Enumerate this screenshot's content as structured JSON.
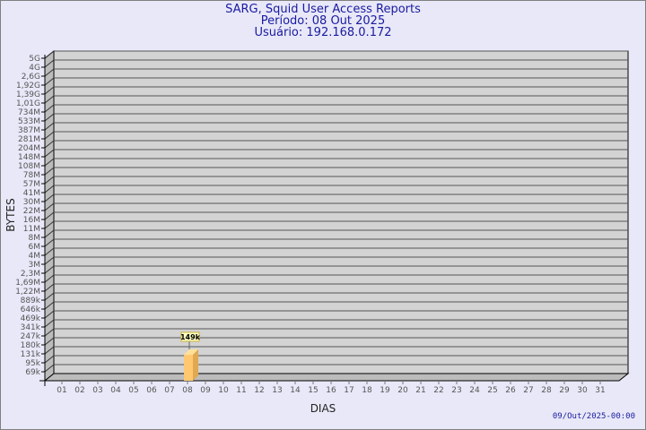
{
  "header": {
    "title": "SARG, Squid User Access Reports",
    "period": "Período: 08 Out 2025",
    "user": "Usuário: 192.168.0.172"
  },
  "footer": {
    "timestamp": "09/Out/2025-00:00"
  },
  "chart_data": {
    "type": "bar",
    "title": "SARG, Squid User Access Reports",
    "xlabel": "DIAS",
    "ylabel": "BYTES",
    "y_scale": "log",
    "y_ticks": [
      "5G",
      "4G",
      "2,6G",
      "1,92G",
      "1,39G",
      "1,01G",
      "734M",
      "533M",
      "387M",
      "281M",
      "204M",
      "148M",
      "108M",
      "78M",
      "57M",
      "41M",
      "30M",
      "22M",
      "16M",
      "11M",
      "8M",
      "6M",
      "4M",
      "3M",
      "2,3M",
      "1,69M",
      "1,22M",
      "889k",
      "646k",
      "469k",
      "341k",
      "247k",
      "180k",
      "131k",
      "95k",
      "69k"
    ],
    "categories": [
      "01",
      "02",
      "03",
      "04",
      "05",
      "06",
      "07",
      "08",
      "09",
      "10",
      "11",
      "12",
      "13",
      "14",
      "15",
      "16",
      "17",
      "18",
      "19",
      "20",
      "21",
      "22",
      "23",
      "24",
      "25",
      "26",
      "27",
      "28",
      "29",
      "30",
      "31"
    ],
    "values": [
      null,
      null,
      null,
      null,
      null,
      null,
      null,
      149000,
      null,
      null,
      null,
      null,
      null,
      null,
      null,
      null,
      null,
      null,
      null,
      null,
      null,
      null,
      null,
      null,
      null,
      null,
      null,
      null,
      null,
      null,
      null
    ],
    "data_labels": {
      "08": "149k"
    },
    "grid": true,
    "colors": {
      "bar": "#ffc870",
      "bar_top": "#ffe09a",
      "bar_side": "#e0a850",
      "wall": "#d3d3d3",
      "label_bg": "#ffffc0"
    }
  }
}
